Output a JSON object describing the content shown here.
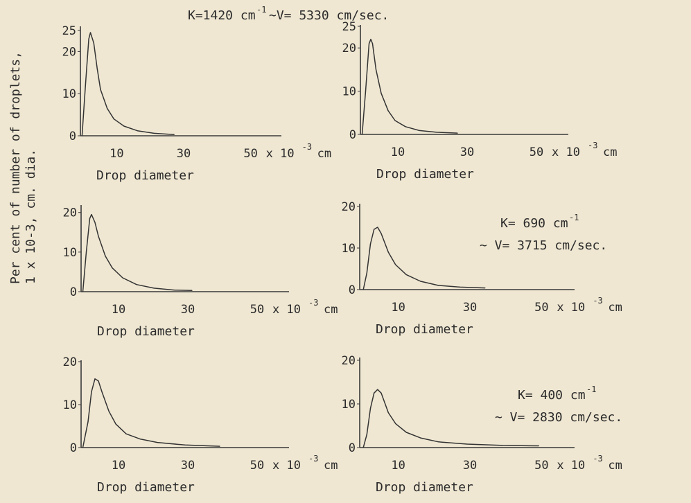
{
  "figure": {
    "ylabel_line1": "Per cent of number of droplets,",
    "ylabel_line2": "1 x 10-3, cm. dia.",
    "annotations": [
      {
        "K": "K=1420 cm",
        "K_sup": "-1",
        "V": "~V= 5330 cm/sec."
      },
      {
        "K": "K= 690 cm",
        "K_sup": "-1",
        "V": "~ V= 3715 cm/sec."
      },
      {
        "K": "K= 400 cm",
        "K_sup": "-1",
        "V": "~ V= 2830 cm/sec."
      }
    ]
  },
  "chart_data": [
    {
      "type": "line",
      "xlabel": "Drop diameter",
      "x_unit": "x 10",
      "x_unit_sup": "-3",
      "x_unit_tail": "cm",
      "xticks": [
        10,
        30,
        50
      ],
      "yticks": [
        0,
        10,
        20,
        25
      ],
      "ylim": [
        0,
        25
      ],
      "xlim": [
        0,
        60
      ],
      "x": [
        0.5,
        1.5,
        2.5,
        3,
        4,
        5,
        6,
        8,
        10,
        13,
        17,
        22,
        28
      ],
      "y": [
        0,
        12,
        23,
        24.5,
        22,
        16,
        11,
        6.5,
        4,
        2.3,
        1.2,
        0.6,
        0.3
      ]
    },
    {
      "type": "line",
      "xlabel": "Drop diameter",
      "x_unit": "x 10",
      "x_unit_sup": "-3",
      "x_unit_tail": "cm",
      "xticks": [
        10,
        30,
        50
      ],
      "yticks": [
        0,
        10,
        20,
        25
      ],
      "ylim": [
        0,
        25
      ],
      "xlim": [
        0,
        60
      ],
      "x": [
        0.5,
        1.5,
        2.5,
        3,
        3.5,
        4.5,
        6,
        8,
        10,
        13,
        17,
        22,
        28
      ],
      "y": [
        0,
        10,
        21,
        22,
        21,
        15,
        9.5,
        5.5,
        3.2,
        1.8,
        0.9,
        0.5,
        0.3
      ]
    },
    {
      "type": "line",
      "xlabel": "Drop diameter",
      "x_unit": "x 10",
      "x_unit_sup": "-3",
      "x_unit_tail": "cm",
      "xticks": [
        10,
        30,
        50
      ],
      "yticks": [
        0,
        10,
        20
      ],
      "ylim": [
        0,
        21
      ],
      "xlim": [
        0,
        60
      ],
      "x": [
        0.5,
        1.5,
        2.5,
        3,
        4,
        5,
        7,
        9,
        12,
        16,
        21,
        27,
        32
      ],
      "y": [
        0,
        10,
        18.5,
        19.5,
        17.5,
        14,
        9,
        6,
        3.5,
        1.8,
        0.9,
        0.4,
        0.3
      ]
    },
    {
      "type": "line",
      "xlabel": "Drop diameter",
      "x_unit": "x 10",
      "x_unit_sup": "-3",
      "x_unit_tail": "cm",
      "xticks": [
        10,
        30,
        50
      ],
      "yticks": [
        0,
        10,
        20
      ],
      "ylim": [
        0,
        20
      ],
      "xlim": [
        0,
        60
      ],
      "x": [
        1,
        2,
        3,
        4,
        5,
        6,
        8,
        10,
        13,
        17,
        22,
        28,
        35
      ],
      "y": [
        0,
        4,
        11,
        14.5,
        15,
        13.5,
        9,
        6,
        3.6,
        2,
        1,
        0.6,
        0.4
      ]
    },
    {
      "type": "line",
      "xlabel": "Drop diameter",
      "x_unit": "x 10",
      "x_unit_sup": "-3",
      "x_unit_tail": "cm",
      "xticks": [
        10,
        30,
        50
      ],
      "yticks": [
        0,
        10,
        20
      ],
      "ylim": [
        0,
        20
      ],
      "xlim": [
        0,
        60
      ],
      "x": [
        0.5,
        2,
        3,
        4,
        5,
        6,
        8,
        10,
        13,
        17,
        22,
        30,
        40
      ],
      "y": [
        0,
        6,
        13,
        16,
        15.5,
        13,
        8.5,
        5.5,
        3.2,
        2,
        1.2,
        0.6,
        0.3
      ]
    },
    {
      "type": "line",
      "xlabel": "Drop diameter",
      "x_unit": "x 10",
      "x_unit_sup": "-3",
      "x_unit_tail": "cm",
      "xticks": [
        10,
        30,
        50
      ],
      "yticks": [
        0,
        10,
        20
      ],
      "ylim": [
        0,
        20
      ],
      "xlim": [
        0,
        60
      ],
      "x": [
        1,
        2,
        3,
        4,
        5,
        6,
        8,
        10,
        13,
        17,
        22,
        30,
        40,
        50
      ],
      "y": [
        0,
        3,
        9,
        12.5,
        13.3,
        12.5,
        8,
        5.5,
        3.5,
        2.2,
        1.3,
        0.8,
        0.5,
        0.4
      ]
    }
  ]
}
